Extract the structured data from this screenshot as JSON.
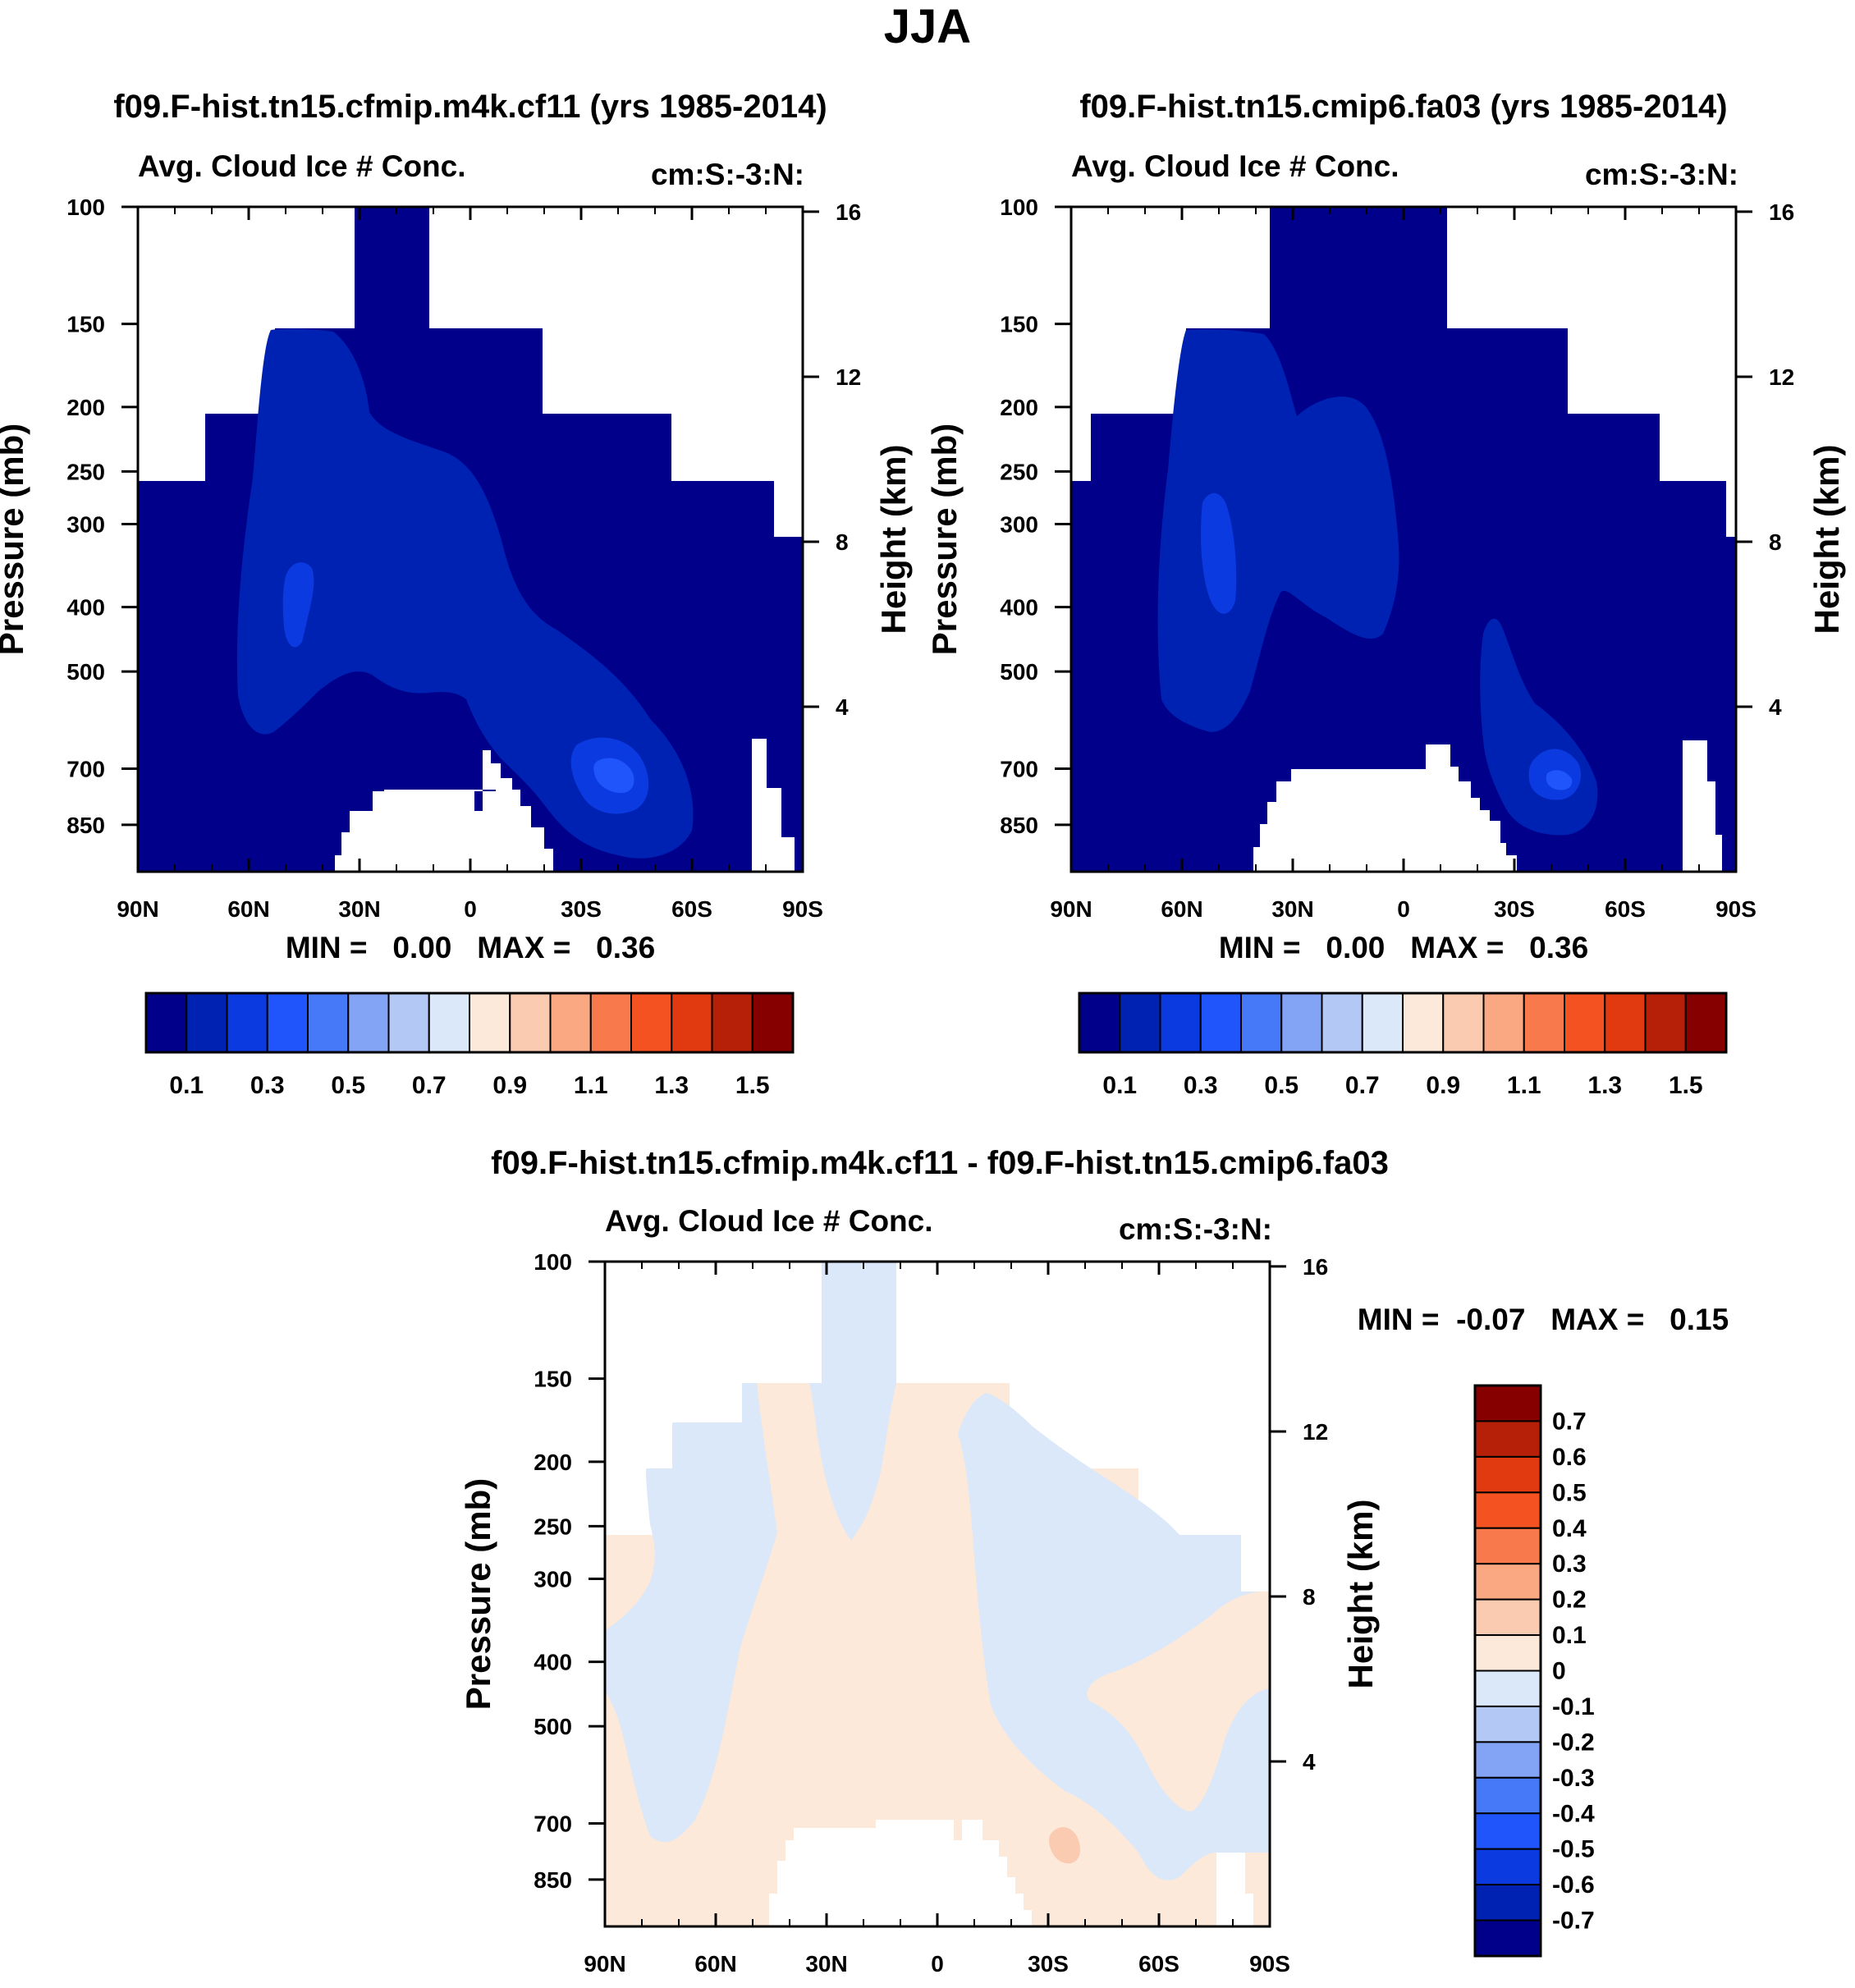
{
  "page_title": "JJA",
  "chart_data": [
    {
      "type": "heatmap",
      "title": "f09.F-hist.tn15.cfmip.m4k.cf11 (yrs 1985-2014)",
      "subtitle_left": "Avg. Cloud Ice # Conc.",
      "subtitle_right": "cm:S:-3:N:",
      "xlabel": "",
      "ylabel": "Pressure (mb)",
      "y2label": "Height (km)",
      "x_ticks": [
        "90N",
        "60N",
        "30N",
        "0",
        "30S",
        "60S",
        "90S"
      ],
      "y_ticks": [
        "100",
        "150",
        "200",
        "250",
        "300",
        "400",
        "500",
        "700",
        "850"
      ],
      "y2_ticks": [
        "16",
        "12",
        "8",
        "4"
      ],
      "stats": "MIN =   0.00   MAX =   0.36",
      "min": 0.0,
      "max": 0.36,
      "colorbar_labels": [
        "0.1",
        "0.3",
        "0.5",
        "0.7",
        "0.9",
        "1.1",
        "1.3",
        "1.5"
      ],
      "colorbar_colors": [
        "#00008b",
        "#0022b2",
        "#0a3ae0",
        "#1f55fb",
        "#4679f8",
        "#83a4f5",
        "#b4c8f5",
        "#dae8fa",
        "#fde9d9",
        "#fbcbb1",
        "#f9a882",
        "#f87a4c",
        "#f45220",
        "#e13a10",
        "#b72008",
        "#870000"
      ]
    },
    {
      "type": "heatmap",
      "title": "f09.F-hist.tn15.cmip6.fa03 (yrs 1985-2014)",
      "subtitle_left": "Avg. Cloud Ice # Conc.",
      "subtitle_right": "cm:S:-3:N:",
      "xlabel": "",
      "ylabel": "Pressure (mb)",
      "y2label": "Height (km)",
      "x_ticks": [
        "90N",
        "60N",
        "30N",
        "0",
        "30S",
        "60S",
        "90S"
      ],
      "y_ticks": [
        "100",
        "150",
        "200",
        "250",
        "300",
        "400",
        "500",
        "700",
        "850"
      ],
      "y2_ticks": [
        "16",
        "12",
        "8",
        "4"
      ],
      "stats": "MIN =   0.00   MAX =   0.36",
      "min": 0.0,
      "max": 0.36,
      "colorbar_labels": [
        "0.1",
        "0.3",
        "0.5",
        "0.7",
        "0.9",
        "1.1",
        "1.3",
        "1.5"
      ],
      "colorbar_colors": [
        "#00008b",
        "#0022b2",
        "#0a3ae0",
        "#1f55fb",
        "#4679f8",
        "#83a4f5",
        "#b4c8f5",
        "#dae8fa",
        "#fde9d9",
        "#fbcbb1",
        "#f9a882",
        "#f87a4c",
        "#f45220",
        "#e13a10",
        "#b72008",
        "#870000"
      ]
    },
    {
      "type": "heatmap",
      "title": "f09.F-hist.tn15.cfmip.m4k.cf11 - f09.F-hist.tn15.cmip6.fa03",
      "subtitle_left": "Avg. Cloud Ice # Conc.",
      "subtitle_right": "cm:S:-3:N:",
      "xlabel": "",
      "ylabel": "Pressure (mb)",
      "y2label": "Height (km)",
      "x_ticks": [
        "90N",
        "60N",
        "30N",
        "0",
        "30S",
        "60S",
        "90S"
      ],
      "y_ticks": [
        "100",
        "150",
        "200",
        "250",
        "300",
        "400",
        "500",
        "700",
        "850"
      ],
      "y2_ticks": [
        "16",
        "12",
        "8",
        "4"
      ],
      "stats": "MIN =  -0.07   MAX =   0.15",
      "min": -0.07,
      "max": 0.15,
      "colorbar_labels": [
        "0.7",
        "0.6",
        "0.5",
        "0.4",
        "0.3",
        "0.2",
        "0.1",
        "0",
        "-0.1",
        "-0.2",
        "-0.3",
        "-0.4",
        "-0.5",
        "-0.6",
        "-0.7"
      ],
      "colorbar_colors": [
        "#870000",
        "#b72008",
        "#e13a10",
        "#f45220",
        "#f87a4c",
        "#f9a882",
        "#fbcbb1",
        "#fde9d9",
        "#dae8fa",
        "#b4c8f5",
        "#83a4f5",
        "#4679f8",
        "#1f55fb",
        "#0a3ae0",
        "#0022b2",
        "#00008b"
      ]
    }
  ]
}
